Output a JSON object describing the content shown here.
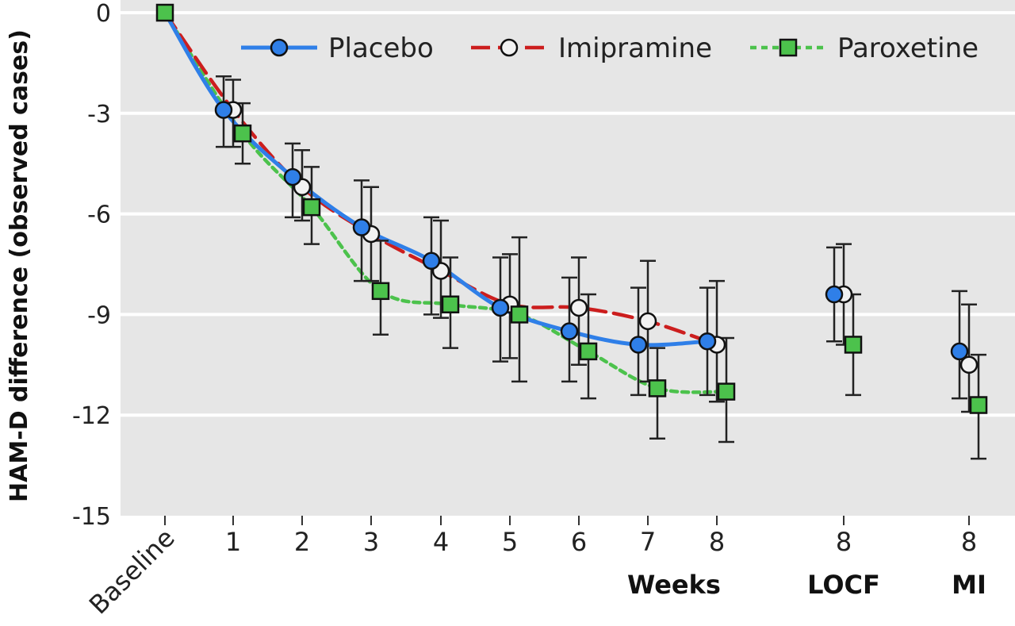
{
  "chart_data": {
    "type": "line",
    "title": "",
    "ylabel": "HAM-D difference (observed cases)",
    "ylim": [
      -15,
      0
    ],
    "yticks": [
      0,
      -3,
      -6,
      -9,
      -12,
      -15
    ],
    "ytick_labels": [
      "0",
      "-3",
      "-6",
      "-9",
      "-12",
      "-15"
    ],
    "grid": true,
    "legend_position": "top",
    "categories": [
      "Baseline",
      "1",
      "2",
      "3",
      "4",
      "5",
      "6",
      "7",
      "8",
      "8",
      "8"
    ],
    "x_group_labels": [
      {
        "label": "Weeks",
        "under": [
          1,
          8
        ]
      },
      {
        "label": "LOCF",
        "under": [
          9,
          9
        ]
      },
      {
        "label": "MI",
        "under": [
          10,
          10
        ]
      }
    ],
    "series": [
      {
        "name": "Placebo",
        "color": "#2f7fe8",
        "line_style": "solid",
        "marker": "circle-filled",
        "values": [
          0,
          -2.9,
          -4.9,
          -6.4,
          -7.4,
          -8.8,
          -9.5,
          -9.9,
          -9.8,
          -8.4,
          -10.1
        ],
        "err_low": [
          0,
          -4.0,
          -6.1,
          -8.0,
          -9.0,
          -10.4,
          -11.0,
          -11.4,
          -11.4,
          -9.8,
          -11.5
        ],
        "err_high": [
          0,
          -1.9,
          -3.9,
          -5.0,
          -6.1,
          -7.3,
          -7.9,
          -8.2,
          -8.2,
          -7.0,
          -8.3
        ],
        "connected_count": 9
      },
      {
        "name": "Imipramine",
        "color": "#cc1e1e",
        "line_style": "dashed",
        "marker": "circle-open",
        "values": [
          0,
          -2.9,
          -5.2,
          -6.6,
          -7.7,
          -8.7,
          -8.8,
          -9.2,
          -9.9,
          -8.4,
          -10.5
        ],
        "err_low": [
          0,
          -4.0,
          -6.2,
          -8.0,
          -9.1,
          -10.3,
          -10.5,
          -11.0,
          -11.6,
          -9.9,
          -11.9
        ],
        "err_high": [
          0,
          -2.0,
          -4.1,
          -5.2,
          -6.2,
          -7.2,
          -7.3,
          -7.4,
          -8.0,
          -6.9,
          -8.7
        ],
        "connected_count": 9
      },
      {
        "name": "Paroxetine",
        "color": "#4cc24c",
        "line_style": "dotted",
        "marker": "square-filled",
        "values": [
          0,
          -3.6,
          -5.8,
          -8.3,
          -8.7,
          -9.0,
          -10.1,
          -11.2,
          -11.3,
          -9.9,
          -11.7
        ],
        "err_low": [
          0,
          -4.5,
          -6.9,
          -9.6,
          -10.0,
          -11.0,
          -11.5,
          -12.7,
          -12.8,
          -11.4,
          -13.3
        ],
        "err_high": [
          0,
          -2.7,
          -4.6,
          -6.8,
          -7.3,
          -6.7,
          -8.4,
          -10.0,
          -9.7,
          -8.4,
          -10.2
        ],
        "connected_count": 9
      }
    ]
  }
}
